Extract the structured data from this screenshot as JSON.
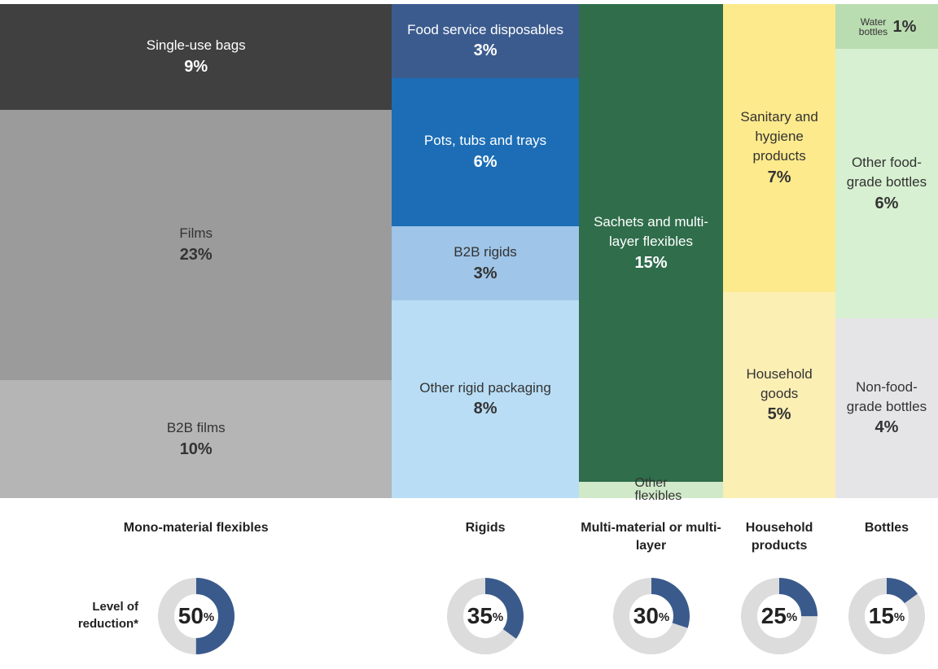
{
  "chart_data": {
    "type": "treemap",
    "reduction_label": "Level of reduction*",
    "reduction_unit": "%",
    "arc_color": "#3a5a8c",
    "ring_color": "#dcdcdc",
    "groups": [
      {
        "name": "Mono-material flexibles",
        "reduction": 50,
        "items": [
          {
            "name": "Single-use bags",
            "value": 9,
            "value_label": "9%",
            "color": "#404040"
          },
          {
            "name": "Films",
            "value": 23,
            "value_label": "23%",
            "color": "#9b9b9b"
          },
          {
            "name": "B2B films",
            "value": 10,
            "value_label": "10%",
            "color": "#b5b5b5"
          }
        ]
      },
      {
        "name": "Rigids",
        "reduction": 35,
        "items": [
          {
            "name": "Food service disposables",
            "value": 3,
            "value_label": "3%",
            "color": "#3b5b8e"
          },
          {
            "name": "Pots, tubs and trays",
            "value": 6,
            "value_label": "6%",
            "color": "#1c6db6"
          },
          {
            "name": "B2B rigids",
            "value": 3,
            "value_label": "3%",
            "color": "#9fc5e8"
          },
          {
            "name": "Other rigid packaging",
            "value": 8,
            "value_label": "8%",
            "color": "#b9ddf5"
          }
        ]
      },
      {
        "name": "Multi-material or multi-layer",
        "reduction": 30,
        "items": [
          {
            "name": "Sachets and multi-layer flexibles",
            "value": 15,
            "value_label": "15%",
            "color": "#2f6d4b"
          },
          {
            "name": "Other flexibles",
            "value": 0.5,
            "color": "#cfe9c9"
          }
        ]
      },
      {
        "name": "Household products",
        "reduction": 25,
        "items": [
          {
            "name": "Sanitary and hygiene products",
            "value": 7,
            "value_label": "7%",
            "color": "#fdea8c"
          },
          {
            "name": "Household goods",
            "value": 5,
            "value_label": "5%",
            "color": "#fbefb4"
          }
        ]
      },
      {
        "name": "Bottles",
        "reduction": 15,
        "items": [
          {
            "name": "Water bottles",
            "value": 1,
            "value_label": "1%",
            "color": "#badcb1"
          },
          {
            "name": "Other food-grade bottles",
            "value": 6,
            "value_label": "6%",
            "color": "#d7f0d1"
          },
          {
            "name": "Non-food-grade bottles",
            "value": 4,
            "value_label": "4%",
            "color": "#e5e5e7"
          }
        ]
      }
    ]
  }
}
